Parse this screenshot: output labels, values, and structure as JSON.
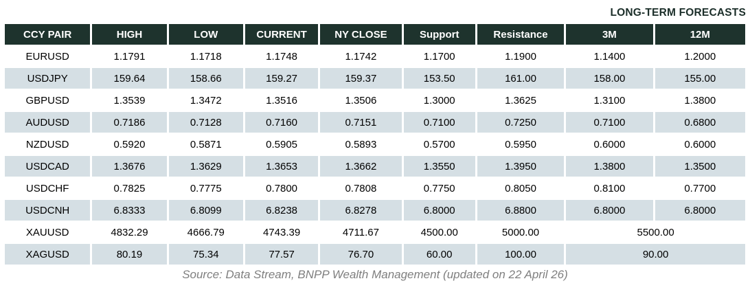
{
  "chart_data": {
    "type": "table",
    "title": "LONG-TERM FORECASTS",
    "columns": [
      "CCY PAIR",
      "HIGH",
      "LOW",
      "CURRENT",
      "NY CLOSE",
      "Support",
      "Resistance",
      "3M",
      "12M"
    ],
    "rows": [
      {
        "pair": "EURUSD",
        "high": "1.1791",
        "low": "1.1718",
        "current": "1.1748",
        "ny_close": "1.1742",
        "support": "1.1700",
        "resistance": "1.1900",
        "m3": "1.1400",
        "m12": "1.2000"
      },
      {
        "pair": "USDJPY",
        "high": "159.64",
        "low": "158.66",
        "current": "159.27",
        "ny_close": "159.37",
        "support": "153.50",
        "resistance": "161.00",
        "m3": "158.00",
        "m12": "155.00"
      },
      {
        "pair": "GBPUSD",
        "high": "1.3539",
        "low": "1.3472",
        "current": "1.3516",
        "ny_close": "1.3506",
        "support": "1.3000",
        "resistance": "1.3625",
        "m3": "1.3100",
        "m12": "1.3800"
      },
      {
        "pair": "AUDUSD",
        "high": "0.7186",
        "low": "0.7128",
        "current": "0.7160",
        "ny_close": "0.7151",
        "support": "0.7100",
        "resistance": "0.7250",
        "m3": "0.7100",
        "m12": "0.6800"
      },
      {
        "pair": "NZDUSD",
        "high": "0.5920",
        "low": "0.5871",
        "current": "0.5905",
        "ny_close": "0.5893",
        "support": "0.5700",
        "resistance": "0.5950",
        "m3": "0.6000",
        "m12": "0.6000"
      },
      {
        "pair": "USDCAD",
        "high": "1.3676",
        "low": "1.3629",
        "current": "1.3653",
        "ny_close": "1.3662",
        "support": "1.3550",
        "resistance": "1.3950",
        "m3": "1.3800",
        "m12": "1.3500"
      },
      {
        "pair": "USDCHF",
        "high": "0.7825",
        "low": "0.7775",
        "current": "0.7800",
        "ny_close": "0.7808",
        "support": "0.7750",
        "resistance": "0.8050",
        "m3": "0.8100",
        "m12": "0.7700"
      },
      {
        "pair": "USDCNH",
        "high": "6.8333",
        "low": "6.8099",
        "current": "6.8238",
        "ny_close": "6.8278",
        "support": "6.8000",
        "resistance": "6.8800",
        "m3": "6.8000",
        "m12": "6.8000"
      },
      {
        "pair": "XAUUSD",
        "high": "4832.29",
        "low": "4666.79",
        "current": "4743.39",
        "ny_close": "4711.67",
        "support": "4500.00",
        "resistance": "5000.00",
        "forecast_merged": "5500.00"
      },
      {
        "pair": "XAGUSD",
        "high": "80.19",
        "low": "75.34",
        "current": "77.57",
        "ny_close": "76.70",
        "support": "60.00",
        "resistance": "100.00",
        "forecast_merged": "90.00"
      }
    ],
    "layout_hint": "3M and 12M cells are merged into one centered cell for XAUUSD and XAGUSD rows",
    "source": "Source: Data Stream, BNPP Wealth Management (updated on 22 April 26)"
  },
  "colors": {
    "header_bg": "#1e332d",
    "row_shade": "#d5dfe4",
    "header_text": "#ffffff",
    "title_text": "#1b2e29",
    "source_text": "#7f7f7f",
    "body_text": "#000000"
  }
}
